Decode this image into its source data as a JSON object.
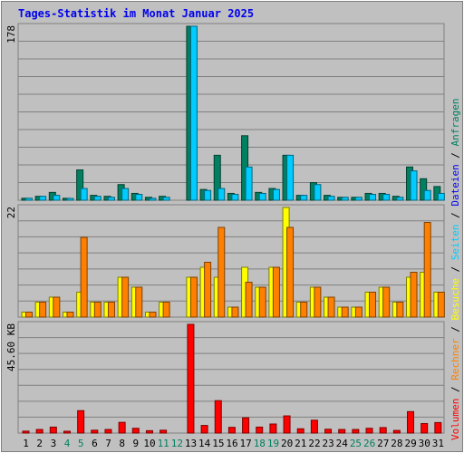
{
  "title": "Tages-Statistik im Monat Januar 2025",
  "colors": {
    "title": "#0000ee",
    "frame_bg": "#c0c0c0",
    "plot_bg": "#c0c0c0",
    "grid": "#808080",
    "hits": "#008060",
    "files": "#00ccff",
    "sites": "#ff8000",
    "visits": "#ffff00",
    "kbytes": "#ff0000",
    "weekend_day": "#008060",
    "weekday": "#000000"
  },
  "legend": {
    "hits": "Anfragen",
    "files": "Dateien",
    "pages": "Seiten",
    "visits": "Besuche",
    "sites": "Rechner",
    "kbytes": "Volumen",
    "separator": " / "
  },
  "chart_data": [
    {
      "type": "bar",
      "name": "top-panel",
      "ymax_label": "178",
      "ylim": [
        0,
        178
      ],
      "categories": [
        "1",
        "2",
        "3",
        "4",
        "5",
        "6",
        "7",
        "8",
        "9",
        "10",
        "11",
        "12",
        "13",
        "14",
        "15",
        "16",
        "17",
        "18",
        "19",
        "20",
        "21",
        "22",
        "23",
        "24",
        "25",
        "26",
        "27",
        "28",
        "29",
        "30",
        "31"
      ],
      "series": [
        {
          "name": "Anfragen",
          "key": "hits",
          "values": [
            2,
            4,
            8,
            2,
            31,
            5,
            4,
            16,
            7,
            3,
            4,
            0,
            178,
            11,
            46,
            7,
            66,
            8,
            12,
            46,
            5,
            18,
            5,
            3,
            3,
            7,
            7,
            4,
            34,
            22,
            14
          ]
        },
        {
          "name": "Dateien",
          "key": "files",
          "values": [
            2,
            4,
            5,
            1,
            12,
            4,
            3,
            12,
            6,
            2,
            3,
            0,
            178,
            10,
            12,
            6,
            34,
            7,
            11,
            46,
            5,
            16,
            4,
            3,
            3,
            6,
            6,
            3,
            30,
            10,
            7
          ]
        }
      ]
    },
    {
      "type": "bar",
      "name": "middle-panel",
      "ymax_label": "22",
      "ylim": [
        0,
        22
      ],
      "categories": [
        "1",
        "2",
        "3",
        "4",
        "5",
        "6",
        "7",
        "8",
        "9",
        "10",
        "11",
        "12",
        "13",
        "14",
        "15",
        "16",
        "17",
        "18",
        "19",
        "20",
        "21",
        "22",
        "23",
        "24",
        "25",
        "26",
        "27",
        "28",
        "29",
        "30",
        "31"
      ],
      "series": [
        {
          "name": "Besuche",
          "key": "visits",
          "values": [
            1,
            3,
            4,
            1,
            5,
            3,
            3,
            8,
            6,
            1,
            3,
            0,
            8,
            10,
            8,
            2,
            10,
            6,
            10,
            22,
            3,
            6,
            4,
            2,
            2,
            5,
            6,
            3,
            8,
            9,
            5
          ]
        },
        {
          "name": "Rechner",
          "key": "sites",
          "values": [
            1,
            3,
            4,
            1,
            16,
            3,
            3,
            8,
            6,
            1,
            3,
            0,
            8,
            11,
            18,
            2,
            7,
            6,
            10,
            18,
            3,
            6,
            4,
            2,
            2,
            5,
            6,
            3,
            9,
            19,
            5
          ]
        }
      ]
    },
    {
      "type": "bar",
      "name": "bottom-panel",
      "ymax_label": "45.60 KB",
      "ylim": [
        0,
        45.6
      ],
      "categories": [
        "1",
        "2",
        "3",
        "4",
        "5",
        "6",
        "7",
        "8",
        "9",
        "10",
        "11",
        "12",
        "13",
        "14",
        "15",
        "16",
        "17",
        "18",
        "19",
        "20",
        "21",
        "22",
        "23",
        "24",
        "25",
        "26",
        "27",
        "28",
        "29",
        "30",
        "31"
      ],
      "series": [
        {
          "name": "Volumen",
          "key": "kbytes",
          "values": [
            0.8,
            1.5,
            2.5,
            0.6,
            9.4,
            1.2,
            1.5,
            4.5,
            2.0,
            1.0,
            1.2,
            0,
            45.6,
            3.2,
            13.6,
            2.4,
            6.4,
            2.5,
            3.8,
            7.2,
            1.8,
            5.4,
            1.6,
            1.5,
            1.5,
            2.0,
            2.3,
            1.1,
            9.0,
            4.0,
            4.4
          ]
        }
      ]
    }
  ],
  "days": [
    "1",
    "2",
    "3",
    "4",
    "5",
    "6",
    "7",
    "8",
    "9",
    "10",
    "11",
    "12",
    "13",
    "14",
    "15",
    "16",
    "17",
    "18",
    "19",
    "20",
    "21",
    "22",
    "23",
    "24",
    "25",
    "26",
    "27",
    "28",
    "29",
    "30",
    "31"
  ],
  "weekend_days": [
    "4",
    "5",
    "11",
    "12",
    "18",
    "19",
    "25",
    "26"
  ]
}
